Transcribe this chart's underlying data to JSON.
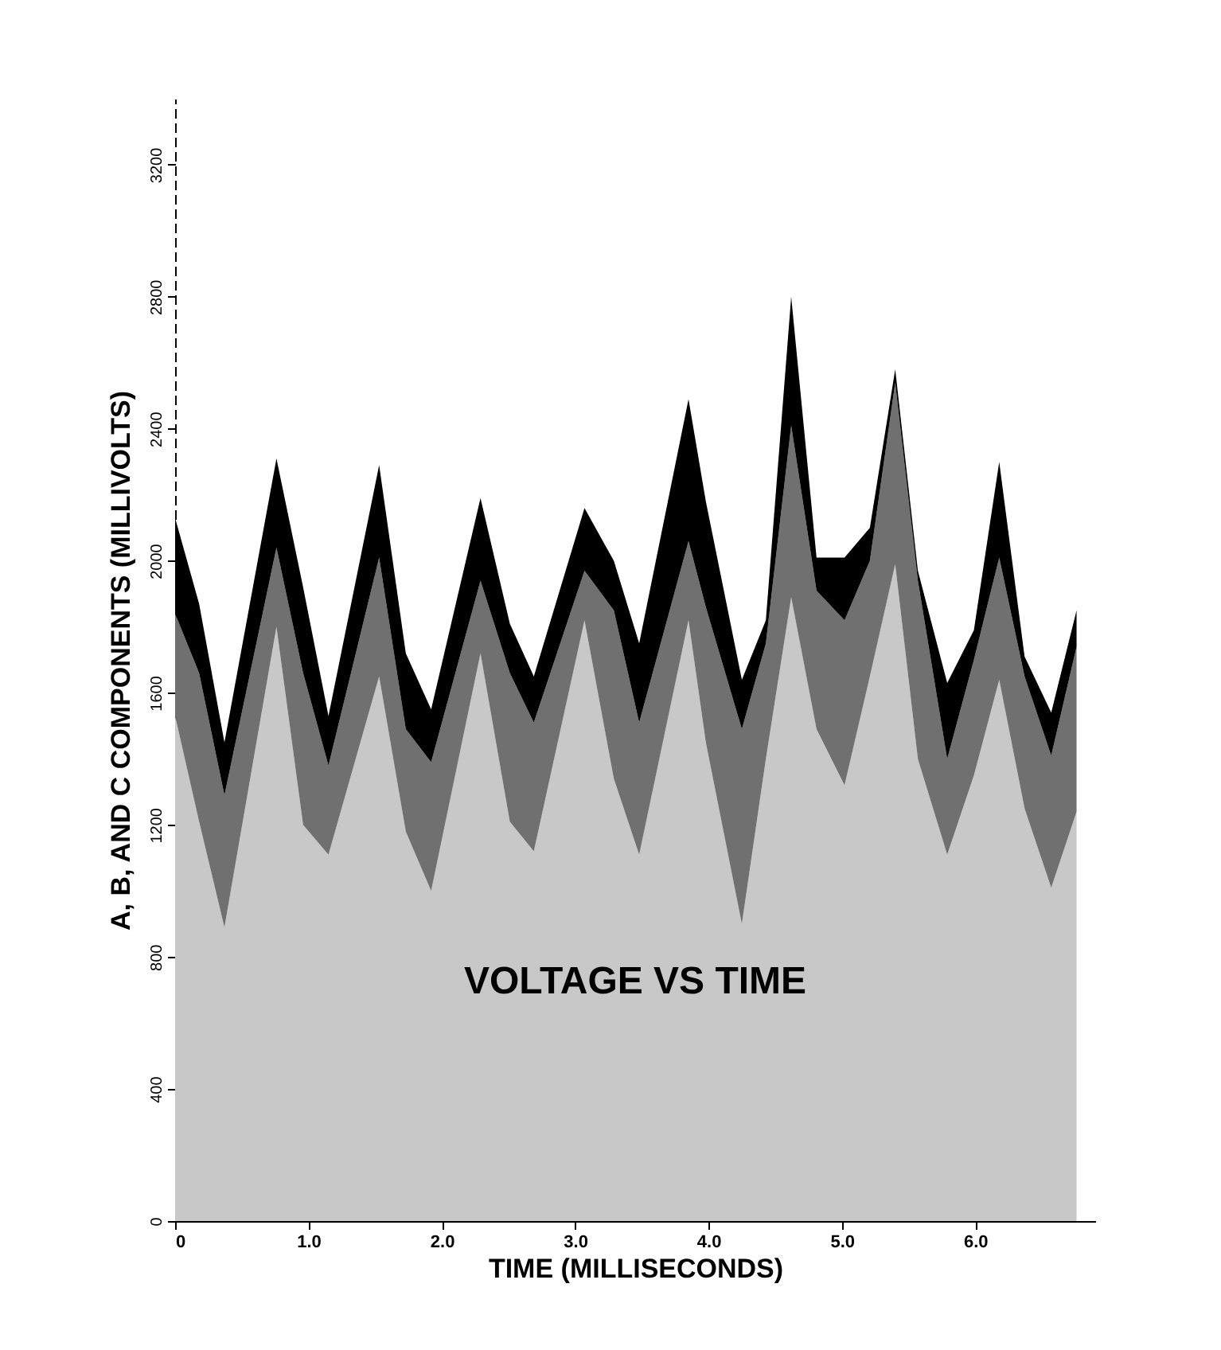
{
  "chart_data": {
    "type": "area",
    "title": "VOLTAGE VS TIME",
    "xlabel": "TIME (MILLISECONDS)",
    "ylabel": "A, B, AND C COMPONENTS (MILLIVOLTS)",
    "stacked": true,
    "x": [
      0,
      0.18,
      0.37,
      0.76,
      0.96,
      1.15,
      1.53,
      1.73,
      1.92,
      2.29,
      2.51,
      2.69,
      3.07,
      3.29,
      3.48,
      3.85,
      3.98,
      4.25,
      4.43,
      4.62,
      4.81,
      5.02,
      5.21,
      5.4,
      5.57,
      5.79,
      5.99,
      6.18,
      6.37,
      6.57,
      6.76
    ],
    "series": [
      {
        "color": "#c8c8c8",
        "values": [
          1530,
          1210,
          890,
          1800,
          1200,
          1110,
          1650,
          1180,
          1000,
          1720,
          1210,
          1120,
          1820,
          1340,
          1110,
          1820,
          1450,
          900,
          1400,
          1890,
          1490,
          1320,
          1650,
          1990,
          1400,
          1110,
          1350,
          1640,
          1250,
          1010,
          1240
        ]
      },
      {
        "color": "#707070",
        "values": [
          310,
          450,
          400,
          240,
          460,
          270,
          360,
          310,
          390,
          220,
          450,
          390,
          150,
          510,
          400,
          240,
          410,
          590,
          350,
          520,
          420,
          500,
          350,
          550,
          540,
          290,
          350,
          370,
          400,
          400,
          500
        ]
      },
      {
        "color": "#000000",
        "values": [
          290,
          210,
          160,
          270,
          260,
          150,
          280,
          230,
          160,
          250,
          150,
          140,
          190,
          150,
          240,
          430,
          320,
          150,
          70,
          390,
          100,
          190,
          100,
          40,
          30,
          230,
          90,
          290,
          60,
          130,
          110
        ]
      }
    ],
    "xlim": [
      0,
      6.9
    ],
    "ylim": [
      0,
      3400
    ],
    "xticks": [
      0,
      {
        "value": 1,
        "label": "1.0"
      },
      {
        "value": 2,
        "label": "2.0"
      },
      {
        "value": 3,
        "label": "3.0"
      },
      {
        "value": 4,
        "label": "4.0"
      },
      {
        "value": 5,
        "label": "5.0"
      },
      {
        "value": 6,
        "label": "6.0"
      }
    ],
    "yticks": [
      0,
      400,
      800,
      1200,
      1600,
      2000,
      2400,
      2800,
      3200
    ]
  }
}
